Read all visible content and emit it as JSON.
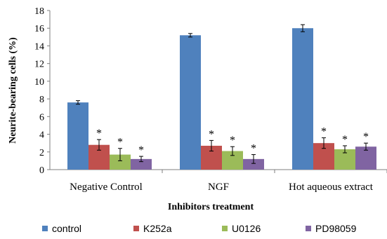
{
  "chart_data": {
    "type": "bar",
    "categories": [
      "Negative Control",
      "NGF",
      "Hot aqueous extract"
    ],
    "series": [
      {
        "name": "control",
        "color": "#4F81BD",
        "values": [
          7.6,
          15.2,
          16.0
        ],
        "errors": [
          0.2,
          0.2,
          0.4
        ],
        "significance": [
          "",
          "",
          ""
        ]
      },
      {
        "name": "K252a",
        "color": "#C0504D",
        "values": [
          2.8,
          2.7,
          3.0
        ],
        "errors": [
          0.6,
          0.6,
          0.6
        ],
        "significance": [
          "*",
          "*",
          "*"
        ]
      },
      {
        "name": "U0126",
        "color": "#9BBB59",
        "values": [
          1.7,
          2.1,
          2.3
        ],
        "errors": [
          0.7,
          0.5,
          0.4
        ],
        "significance": [
          "*",
          "*",
          "*"
        ]
      },
      {
        "name": "PD98059",
        "color": "#8064A2",
        "values": [
          1.2,
          1.2,
          2.6
        ],
        "errors": [
          0.3,
          0.5,
          0.4
        ],
        "significance": [
          "*",
          "*",
          "*"
        ]
      }
    ],
    "xlabel": "Inhibitors treatment",
    "ylabel": "Neurite-bearing cells (%)",
    "ylim": [
      0,
      18
    ],
    "yticks": [
      0,
      2,
      4,
      6,
      8,
      10,
      12,
      14,
      16,
      18
    ],
    "grid": false,
    "legend_position": "bottom"
  }
}
